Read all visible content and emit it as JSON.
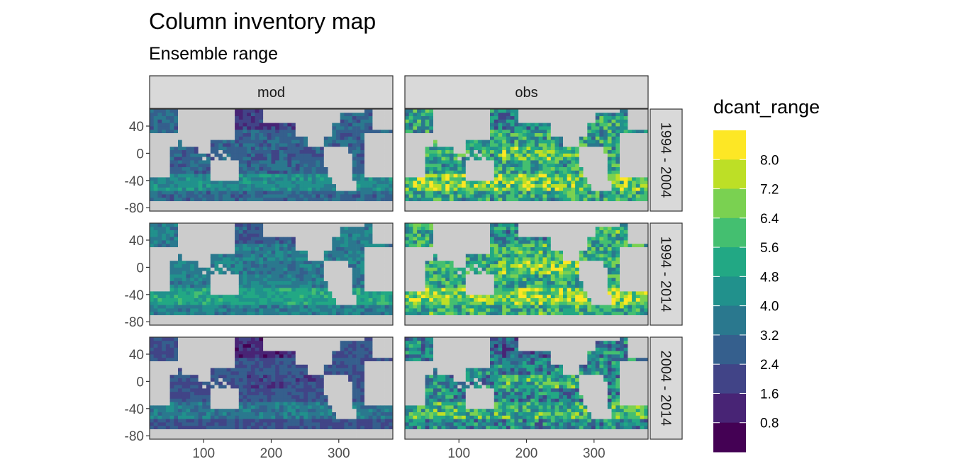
{
  "chart_data": {
    "type": "heatmap",
    "title": "Column inventory map",
    "subtitle": "Ensemble range",
    "column_facets": [
      "mod",
      "obs"
    ],
    "row_facets": [
      "1994 - 2004",
      "1994 - 2014",
      "2004 - 2014"
    ],
    "x_ticks": [
      100,
      200,
      300
    ],
    "xlim": [
      20,
      380
    ],
    "y_ticks": [
      40,
      0,
      -40,
      -80
    ],
    "ylim": [
      -85,
      65
    ],
    "land_color": "#cccccc",
    "panel_border_color": "#333333",
    "strip_fill": "#d9d9d9",
    "legend": {
      "title": "dcant_range",
      "placement": "right",
      "labels": [
        "8.0",
        "7.2",
        "6.4",
        "5.6",
        "4.8",
        "4.0",
        "3.2",
        "2.4",
        "1.6",
        "0.8"
      ],
      "colors": [
        "#fde725",
        "#bddf26",
        "#7ad151",
        "#44bf70",
        "#22a884",
        "#21918c",
        "#2a788e",
        "#355f8d",
        "#414487",
        "#482475",
        "#440154"
      ]
    },
    "mean_level_by_panel": {
      "1994 - 2004": {
        "mod": 2.6,
        "obs": 4.6
      },
      "1994 - 2014": {
        "mod": 3.4,
        "obs": 4.9
      },
      "2004 - 2014": {
        "mod": 2.0,
        "obs": 3.6
      }
    }
  }
}
